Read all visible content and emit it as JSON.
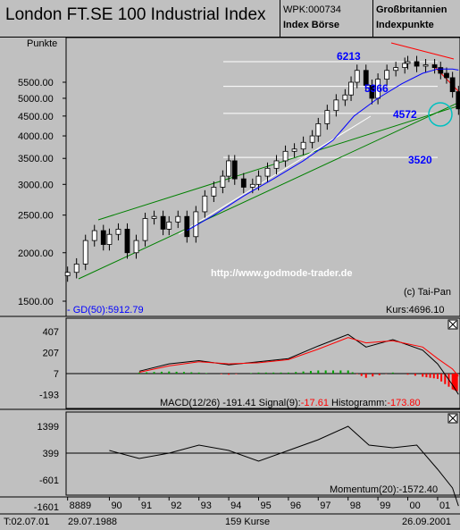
{
  "header": {
    "title": "London FT.SE 100 Industrial Index",
    "wpk": "WPK:000734",
    "exchange": "Index Börse",
    "country": "Großbritannien",
    "unit_type": "Indexpunkte"
  },
  "colors": {
    "background": "#c0c0c0",
    "candle_up": "#ffffff",
    "candle_down": "#000000",
    "ma_line": "#0000ff",
    "trend_green": "#008000",
    "trend_red": "#ff0000",
    "macd_signal": "#ff0000",
    "hist_pos": "#00a000",
    "hist_neg": "#ff0000",
    "label_blue": "#0000ff",
    "circle": "#00c0c0"
  },
  "main_panel": {
    "ylabel": "Punkte",
    "yticks": [
      1500,
      2000,
      2500,
      3000,
      3500,
      4000,
      4500,
      5000,
      5500
    ],
    "ytick_labels": [
      "1500.00",
      "2000.00",
      "2500.00",
      "3000.00",
      "3500.00",
      "4000.00",
      "4500.00",
      "5000.00",
      "5500.00"
    ],
    "annotations": [
      "6213",
      "5366",
      "4572",
      "3520"
    ],
    "watermark": "http://www.godmode-trader.de",
    "copyright": "(c) Tai-Pan",
    "ma_label": "- GD(50):5912.79",
    "last_price": "Kurs:4696.10"
  },
  "macd_panel": {
    "yticks": [
      "407",
      "207",
      "7",
      "-193"
    ],
    "label_prefix": "MACD(12/26) -191.41 Signal(9):",
    "signal_value": "-17.61",
    "hist_prefix": " Histogramm:",
    "hist_value": "-173.80"
  },
  "momentum_panel": {
    "yticks": [
      "1399",
      "399",
      "-601",
      "-1601"
    ],
    "label": "Momentum(20):-1572.40"
  },
  "xaxis": {
    "ticks": [
      "8889",
      "90",
      "91",
      "92",
      "93",
      "94",
      "95",
      "96",
      "97",
      "98",
      "99",
      "00",
      "01"
    ]
  },
  "footer": {
    "left": "T:02.07.01",
    "start_date": "29.07.1988",
    "count": "159 Kurse",
    "end_date": "26.09.2001"
  },
  "chart_data": [
    {
      "type": "candlestick",
      "title": "London FT.SE 100 Industrial Index",
      "ylabel": "Punkte",
      "yscale": "log",
      "ylim": [
        1500,
        6500
      ],
      "x_range": [
        "1988-07-29",
        "2001-09-26"
      ],
      "series": [
        {
          "name": "Kurs",
          "x": [
            1988.6,
            1988.9,
            1989.2,
            1989.5,
            1989.8,
            1990.0,
            1990.3,
            1990.6,
            1990.9,
            1991.2,
            1991.5,
            1991.8,
            1992.0,
            1992.3,
            1992.6,
            1992.9,
            1993.2,
            1993.5,
            1993.8,
            1994.0,
            1994.2,
            1994.5,
            1994.8,
            1995.0,
            1995.3,
            1995.6,
            1995.9,
            1996.2,
            1996.5,
            1996.8,
            1997.0,
            1997.3,
            1997.6,
            1997.9,
            1998.1,
            1998.3,
            1998.6,
            1998.8,
            1999.0,
            1999.3,
            1999.6,
            1999.9,
            2000.0,
            2000.3,
            2000.6,
            2000.9,
            2001.1,
            2001.3,
            2001.5,
            2001.7
          ],
          "values": [
            1780,
            1870,
            2150,
            2280,
            2100,
            2230,
            2300,
            2000,
            2150,
            2450,
            2480,
            2300,
            2400,
            2480,
            2200,
            2550,
            2800,
            2950,
            3150,
            3450,
            3100,
            2950,
            3000,
            3150,
            3300,
            3450,
            3650,
            3700,
            3850,
            4000,
            4300,
            4650,
            4950,
            5100,
            5500,
            5900,
            5400,
            5000,
            5600,
            5900,
            6000,
            6150,
            6213,
            6050,
            6100,
            6000,
            5800,
            5650,
            5200,
            4696
          ]
        },
        {
          "name": "GD(50)",
          "x": [
            1992.6,
            1993.5,
            1994.5,
            1995.5,
            1996.5,
            1997.5,
            1998.2,
            1999.0,
            1999.8,
            2000.5,
            2001.0,
            2001.5,
            2001.7
          ],
          "values": [
            2280,
            2500,
            2800,
            3100,
            3450,
            3900,
            4500,
            5000,
            5450,
            5800,
            5950,
            5950,
            5912.79
          ]
        }
      ],
      "levels": [
        6213,
        5366,
        4572,
        3520
      ],
      "last": 4696.1
    },
    {
      "type": "line",
      "title": "MACD(12/26)",
      "ylim": [
        -193,
        407
      ],
      "series": [
        {
          "name": "MACD(12/26)",
          "x": [
            1991.0,
            1992.0,
            1993.0,
            1994.0,
            1995.0,
            1996.0,
            1997.0,
            1998.0,
            1998.6,
            1999.5,
            2000.5,
            2001.0,
            2001.5,
            2001.7
          ],
          "values": [
            30,
            100,
            130,
            90,
            120,
            150,
            270,
            380,
            260,
            330,
            230,
            100,
            -100,
            -191.41
          ]
        },
        {
          "name": "Signal(9)",
          "x": [
            1991.0,
            1992.0,
            1993.0,
            1994.0,
            1995.0,
            1996.0,
            1997.0,
            1998.0,
            1998.6,
            1999.5,
            2000.5,
            2001.0,
            2001.5,
            2001.7
          ],
          "values": [
            20,
            80,
            120,
            100,
            110,
            140,
            240,
            350,
            300,
            320,
            260,
            150,
            50,
            -17.61
          ]
        },
        {
          "name": "Histogramm",
          "values": [
            -173.8
          ]
        }
      ]
    },
    {
      "type": "line",
      "title": "Momentum(20)",
      "ylim": [
        -1601,
        1399
      ],
      "series": [
        {
          "name": "Momentum(20)",
          "x": [
            1990.0,
            1991.0,
            1992.0,
            1993.0,
            1994.0,
            1995.0,
            1996.0,
            1997.0,
            1998.0,
            1998.7,
            1999.5,
            2000.3,
            2001.0,
            2001.5,
            2001.7
          ],
          "values": [
            500,
            200,
            400,
            700,
            500,
            100,
            500,
            900,
            1400,
            700,
            600,
            700,
            -200,
            -900,
            -1572.4
          ]
        }
      ]
    }
  ]
}
